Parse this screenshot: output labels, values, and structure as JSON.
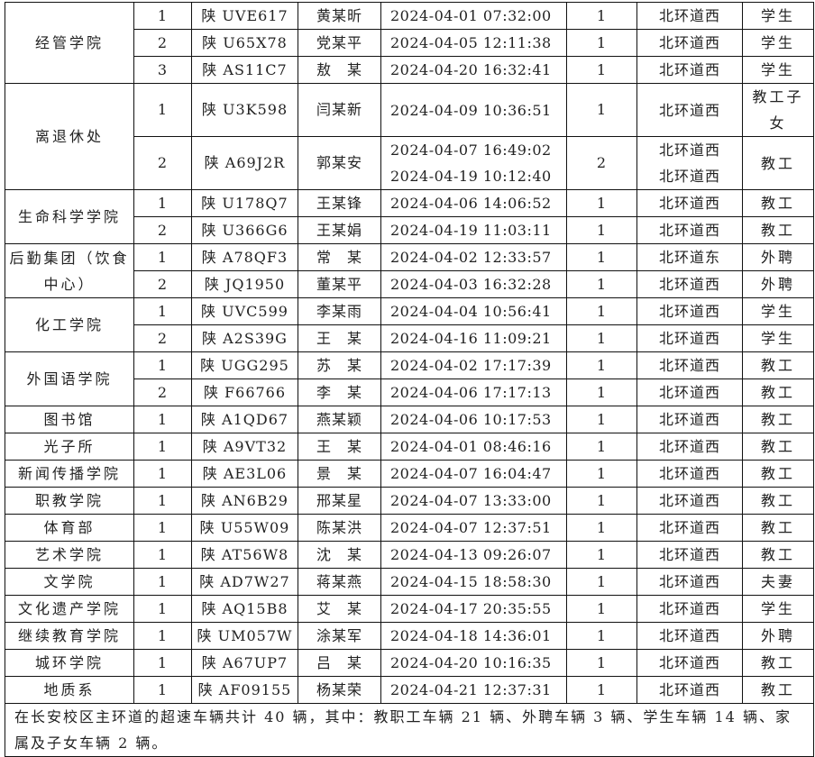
{
  "groups": [
    {
      "dept": "经管学院",
      "rows": [
        {
          "no": "1",
          "plate": "陕 UVE617",
          "name": "黄某昕",
          "times": [
            "2024-04-01 07:32:00"
          ],
          "count": "1",
          "locations": [
            "北环道西"
          ],
          "category": "学生"
        },
        {
          "no": "2",
          "plate": "陕 U65X78",
          "name": "党某平",
          "times": [
            "2024-04-05 12:11:38"
          ],
          "count": "1",
          "locations": [
            "北环道西"
          ],
          "category": "学生"
        },
        {
          "no": "3",
          "plate": "陕 AS11C7",
          "name": "敖　某",
          "times": [
            "2024-04-20 16:32:41"
          ],
          "count": "1",
          "locations": [
            "北环道西"
          ],
          "category": "学生"
        }
      ]
    },
    {
      "dept": "离退休处",
      "rows": [
        {
          "no": "1",
          "plate": "陕 U3K598",
          "name": "闫某新",
          "times": [
            "2024-04-09 10:36:51"
          ],
          "count": "1",
          "locations": [
            "北环道西"
          ],
          "category": "教工子女",
          "tall": true
        },
        {
          "no": "2",
          "plate": "陕 A69J2R",
          "name": "郭某安",
          "times": [
            "2024-04-07 16:49:02",
            "2024-04-19 10:12:40"
          ],
          "count": "2",
          "locations": [
            "北环道西",
            "北环道西"
          ],
          "category": "教工",
          "tall": true
        }
      ]
    },
    {
      "dept": "生命科学学院",
      "rows": [
        {
          "no": "1",
          "plate": "陕 U178Q7",
          "name": "王某锋",
          "times": [
            "2024-04-06 14:06:52"
          ],
          "count": "1",
          "locations": [
            "北环道西"
          ],
          "category": "教工"
        },
        {
          "no": "2",
          "plate": "陕 U366G6",
          "name": "王某娟",
          "times": [
            "2024-04-19 11:03:11"
          ],
          "count": "1",
          "locations": [
            "北环道西"
          ],
          "category": "教工"
        }
      ]
    },
    {
      "dept": "后勤集团（饮食中心）",
      "rows": [
        {
          "no": "1",
          "plate": "陕 A78QF3",
          "name": "常　某",
          "times": [
            "2024-04-02 12:33:57"
          ],
          "count": "1",
          "locations": [
            "北环道东"
          ],
          "category": "外聘"
        },
        {
          "no": "2",
          "plate": "陕 JQ1950",
          "name": "董某平",
          "times": [
            "2024-04-03 16:32:28"
          ],
          "count": "1",
          "locations": [
            "北环道西"
          ],
          "category": "外聘"
        }
      ]
    },
    {
      "dept": "化工学院",
      "rows": [
        {
          "no": "1",
          "plate": "陕 UVC599",
          "name": "李某雨",
          "times": [
            "2024-04-04 10:56:41"
          ],
          "count": "1",
          "locations": [
            "北环道西"
          ],
          "category": "学生"
        },
        {
          "no": "2",
          "plate": "陕 A2S39G",
          "name": "王　某",
          "times": [
            "2024-04-16 11:09:21"
          ],
          "count": "1",
          "locations": [
            "北环道西"
          ],
          "category": "学生"
        }
      ]
    },
    {
      "dept": "外国语学院",
      "rows": [
        {
          "no": "1",
          "plate": "陕 UGG295",
          "name": "苏　某",
          "times": [
            "2024-04-02 17:17:39"
          ],
          "count": "1",
          "locations": [
            "北环道西"
          ],
          "category": "教工"
        },
        {
          "no": "2",
          "plate": "陕 F66766",
          "name": "李　某",
          "times": [
            "2024-04-06 17:17:13"
          ],
          "count": "1",
          "locations": [
            "北环道西"
          ],
          "category": "教工"
        }
      ]
    },
    {
      "dept": "图书馆",
      "rows": [
        {
          "no": "1",
          "plate": "陕 A1QD67",
          "name": "燕某颖",
          "times": [
            "2024-04-06 10:17:53"
          ],
          "count": "1",
          "locations": [
            "北环道西"
          ],
          "category": "教工"
        }
      ]
    },
    {
      "dept": "光子所",
      "rows": [
        {
          "no": "1",
          "plate": "陕 A9VT32",
          "name": "王　某",
          "times": [
            "2024-04-01 08:46:16"
          ],
          "count": "1",
          "locations": [
            "北环道西"
          ],
          "category": "教工"
        }
      ]
    },
    {
      "dept": "新闻传播学院",
      "rows": [
        {
          "no": "1",
          "plate": "陕 AE3L06",
          "name": "景　某",
          "times": [
            "2024-04-07 16:04:47"
          ],
          "count": "1",
          "locations": [
            "北环道西"
          ],
          "category": "教工"
        }
      ]
    },
    {
      "dept": "职教学院",
      "rows": [
        {
          "no": "1",
          "plate": "陕 AN6B29",
          "name": "邢某星",
          "times": [
            "2024-04-07 13:33:00"
          ],
          "count": "1",
          "locations": [
            "北环道西"
          ],
          "category": "教工"
        }
      ]
    },
    {
      "dept": "体育部",
      "rows": [
        {
          "no": "1",
          "plate": "陕 U55W09",
          "name": "陈某洪",
          "times": [
            "2024-04-07 12:37:51"
          ],
          "count": "1",
          "locations": [
            "北环道西"
          ],
          "category": "教工"
        }
      ]
    },
    {
      "dept": "艺术学院",
      "rows": [
        {
          "no": "1",
          "plate": "陕 AT56W8",
          "name": "沈　某",
          "times": [
            "2024-04-13 09:26:07"
          ],
          "count": "1",
          "locations": [
            "北环道西"
          ],
          "category": "教工"
        }
      ]
    },
    {
      "dept": "文学院",
      "rows": [
        {
          "no": "1",
          "plate": "陕 AD7W27",
          "name": "蒋某燕",
          "times": [
            "2024-04-15 18:58:30"
          ],
          "count": "1",
          "locations": [
            "北环道西"
          ],
          "category": "夫妻"
        }
      ]
    },
    {
      "dept": "文化遗产学院",
      "rows": [
        {
          "no": "1",
          "plate": "陕 AQ15B8",
          "name": "艾　某",
          "times": [
            "2024-04-17 20:35:55"
          ],
          "count": "1",
          "locations": [
            "北环道西"
          ],
          "category": "学生"
        }
      ]
    },
    {
      "dept": "继续教育学院",
      "rows": [
        {
          "no": "1",
          "plate": "陕 UM057W",
          "name": "涂某军",
          "times": [
            "2024-04-18 14:36:01"
          ],
          "count": "1",
          "locations": [
            "北环道西"
          ],
          "category": "外聘"
        }
      ]
    },
    {
      "dept": "城环学院",
      "rows": [
        {
          "no": "1",
          "plate": "陕 A67UP7",
          "name": "吕　某",
          "times": [
            "2024-04-20 10:16:35"
          ],
          "count": "1",
          "locations": [
            "北环道西"
          ],
          "category": "教工"
        }
      ]
    },
    {
      "dept": "地质系",
      "rows": [
        {
          "no": "1",
          "plate": "陕 AF09155",
          "name": "杨某荣",
          "times": [
            "2024-04-21 12:37:31"
          ],
          "count": "1",
          "locations": [
            "北环道西"
          ],
          "category": "教工"
        }
      ]
    }
  ],
  "summary": "在长安校区主环道的超速车辆共计 40 辆，其中：教职工车辆 21 辆、外聘车辆 3 辆、学生车辆 14 辆、家属及子女车辆 2 辆。"
}
